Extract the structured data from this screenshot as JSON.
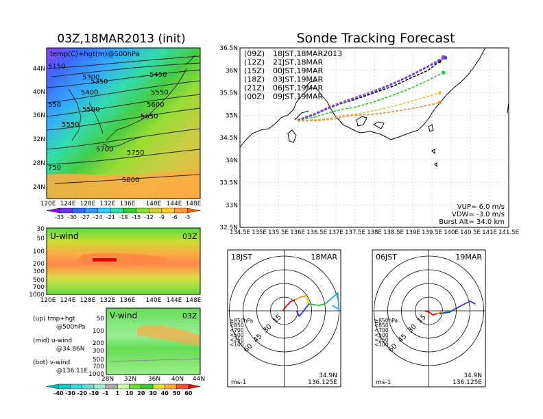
{
  "main_title": "Sonde Tracking Forecast",
  "left_title": "03Z,18MAR2013 (init)",
  "top_map": {
    "label": "temp(C)+hgt(m)@500hPa",
    "lat_ticks": [
      "44N",
      "40N",
      "36N",
      "32N",
      "28N",
      "24N"
    ],
    "lon_ticks": [
      "120E",
      "124E",
      "128E",
      "132E",
      "136E",
      "140E",
      "144E",
      "148E"
    ],
    "contour_labels": [
      "5150",
      "5300",
      "5350",
      "5400",
      "5450",
      "5500",
      "5550",
      "5550",
      "5600",
      "5650",
      "5700",
      "5750",
      "5800",
      "550",
      "750"
    ],
    "colorbar_ticks": [
      "-33",
      "-30",
      "-27",
      "-24",
      "-21",
      "-18",
      "-15",
      "-12",
      "-9",
      "-6",
      "-3"
    ],
    "colorbar_colors": [
      "#9900ff",
      "#6633ff",
      "#3366ff",
      "#3399ff",
      "#33ccff",
      "#33ddaa",
      "#33cc33",
      "#88dd33",
      "#cccc33",
      "#ffcc33",
      "#ff9933",
      "#ff6600"
    ]
  },
  "u_panel": {
    "label": "U-wind",
    "time": "03Z",
    "p_ticks": [
      "30",
      "50",
      "100",
      "200",
      "300",
      "500",
      "700",
      "1000"
    ],
    "lon_ticks": [
      "120E",
      "124E",
      "128E",
      "132E",
      "136E",
      "140E",
      "144E",
      "148E"
    ]
  },
  "v_panel": {
    "label": "V-wind",
    "time": "03Z",
    "p_ticks": [
      "50",
      "100",
      "200",
      "300",
      "500",
      "700",
      "1000"
    ],
    "lat_ticks": [
      "28N",
      "32N",
      "36N",
      "40N",
      "44N"
    ]
  },
  "legend_notes": {
    "up": "(up) tmp+hgt",
    "up2": "@500hPa",
    "mid": "(mid) u-wind",
    "mid2": "@34.86N",
    "bot": "(bot) v-wind",
    "bot2": "@136.11E"
  },
  "wind_colorbar": {
    "ticks": [
      "-40",
      "-30",
      "-20",
      "-10",
      "-1",
      "1",
      "10",
      "20",
      "30",
      "40",
      "50",
      "60"
    ],
    "colors": [
      "#00cccc",
      "#33dddd",
      "#66ddcc",
      "#99eecc",
      "#aaaaaa",
      "#ccff99",
      "#66dd33",
      "#33cc33",
      "#dddd33",
      "#ffaa33",
      "#ff5533",
      "#ee0000"
    ]
  },
  "track_map": {
    "lat_ticks": [
      "36.5N",
      "36N",
      "35.5N",
      "35N",
      "34.5N",
      "34N",
      "33.5N",
      "33N",
      "32.5N"
    ],
    "lon_ticks": [
      "134.5E",
      "135E",
      "135.5E",
      "136E",
      "136.5E",
      "137E",
      "137.5E",
      "138E",
      "138.5E",
      "139E",
      "139.5E",
      "140E",
      "140.5E",
      "141E",
      "141.5E"
    ],
    "legend": [
      {
        "code": "(09Z)",
        "time": "18JST,18MAR2013",
        "color": "#000000"
      },
      {
        "code": "(12Z)",
        "time": "21JST,18MAR",
        "color": "#bb33cc"
      },
      {
        "code": "(15Z)",
        "time": "00JST,19MAR",
        "color": "#3344ee"
      },
      {
        "code": "(18Z)",
        "time": "03JST,19MAR",
        "color": "#22cc22"
      },
      {
        "code": "(21Z)",
        "time": "06JST,19MAR",
        "color": "#eebb33"
      },
      {
        "code": "(00Z)",
        "time": "09JST,19MAR",
        "color": "#ee8833"
      }
    ],
    "params": {
      "vup": "VUP=  6.0  m/s",
      "vdw": "VDW=  -3.0  m/s",
      "burst": "Burst Alt=  34.0  km"
    }
  },
  "chart_data": [
    {
      "type": "line",
      "title": "Sonde Tracking Forecast",
      "xlabel": "",
      "ylabel": "",
      "xlim": [
        134.5,
        141.5
      ],
      "ylim": [
        32.5,
        36.5
      ],
      "series": [
        {
          "name": "(09Z) 18JST,18MAR2013",
          "x": [
            136.0,
            136.4,
            136.8,
            137.1,
            137.5,
            138.0,
            138.5,
            139.0,
            139.4,
            139.7
          ],
          "y": [
            34.9,
            35.0,
            35.15,
            35.25,
            35.35,
            35.5,
            35.65,
            35.85,
            36.0,
            36.2
          ]
        },
        {
          "name": "(12Z) 21JST,18MAR",
          "x": [
            136.0,
            136.4,
            136.8,
            137.1,
            137.5,
            138.0,
            138.5,
            139.0,
            139.4,
            139.8
          ],
          "y": [
            34.9,
            35.02,
            35.18,
            35.28,
            35.4,
            35.55,
            35.72,
            35.92,
            36.1,
            36.3
          ]
        },
        {
          "name": "(15Z) 00JST,19MAR",
          "x": [
            136.0,
            136.4,
            136.8,
            137.1,
            137.5,
            138.0,
            138.5,
            139.0,
            139.4,
            139.85
          ],
          "y": [
            34.88,
            35.0,
            35.15,
            35.25,
            35.37,
            35.52,
            35.7,
            35.9,
            36.08,
            36.28
          ]
        },
        {
          "name": "(18Z) 03JST,19MAR",
          "x": [
            136.0,
            136.4,
            136.8,
            137.1,
            137.5,
            138.0,
            138.5,
            139.0,
            139.4,
            139.8
          ],
          "y": [
            34.88,
            34.95,
            35.05,
            35.12,
            35.18,
            35.3,
            35.45,
            35.62,
            35.78,
            35.95
          ]
        },
        {
          "name": "(21Z) 06JST,19MAR",
          "x": [
            136.0,
            136.5,
            137.0,
            137.2,
            137.5,
            138.0,
            138.5,
            139.0,
            139.4,
            139.7
          ],
          "y": [
            34.87,
            34.9,
            34.95,
            35.0,
            35.02,
            35.1,
            35.2,
            35.32,
            35.42,
            35.5
          ]
        },
        {
          "name": "(00Z) 09JST,19MAR",
          "x": [
            136.0,
            136.5,
            137.0,
            137.2,
            137.5,
            138.0,
            138.5,
            139.0,
            139.4,
            139.7
          ],
          "y": [
            34.87,
            34.88,
            34.92,
            34.97,
            35.0,
            35.02,
            35.08,
            35.15,
            35.22,
            35.28
          ]
        }
      ]
    }
  ],
  "hodo_left": {
    "time": "18JST",
    "date": "18MAR",
    "lat": "34.9N",
    "lon": "136.125E",
    "unit": "ms-1",
    "rings": [
      "15",
      "30",
      "45",
      "60"
    ],
    "levels": [
      {
        "label": "≧850hPa",
        "color": "#dd0000"
      },
      {
        "label": "<850",
        "color": "#ff8800"
      },
      {
        "label": "<700",
        "color": "#dddd00"
      },
      {
        "label": "<500",
        "color": "#22bb22"
      },
      {
        "label": "<250",
        "color": "#22aacc"
      },
      {
        "label": "<100",
        "color": "#2233ee"
      }
    ]
  },
  "hodo_right": {
    "time": "06JST",
    "date": "19MAR",
    "lat": "34.9N",
    "lon": "136.125E",
    "unit": "ms-1",
    "rings": [
      "15",
      "30",
      "45",
      "60"
    ],
    "levels": [
      {
        "label": "≧850hPa",
        "color": "#dd0000"
      },
      {
        "label": "<850",
        "color": "#ff8800"
      },
      {
        "label": "<700",
        "color": "#dddd00"
      },
      {
        "label": "<500",
        "color": "#22bb22"
      },
      {
        "label": "<250",
        "color": "#22aacc"
      },
      {
        "label": "<100",
        "color": "#2233ee"
      }
    ]
  }
}
